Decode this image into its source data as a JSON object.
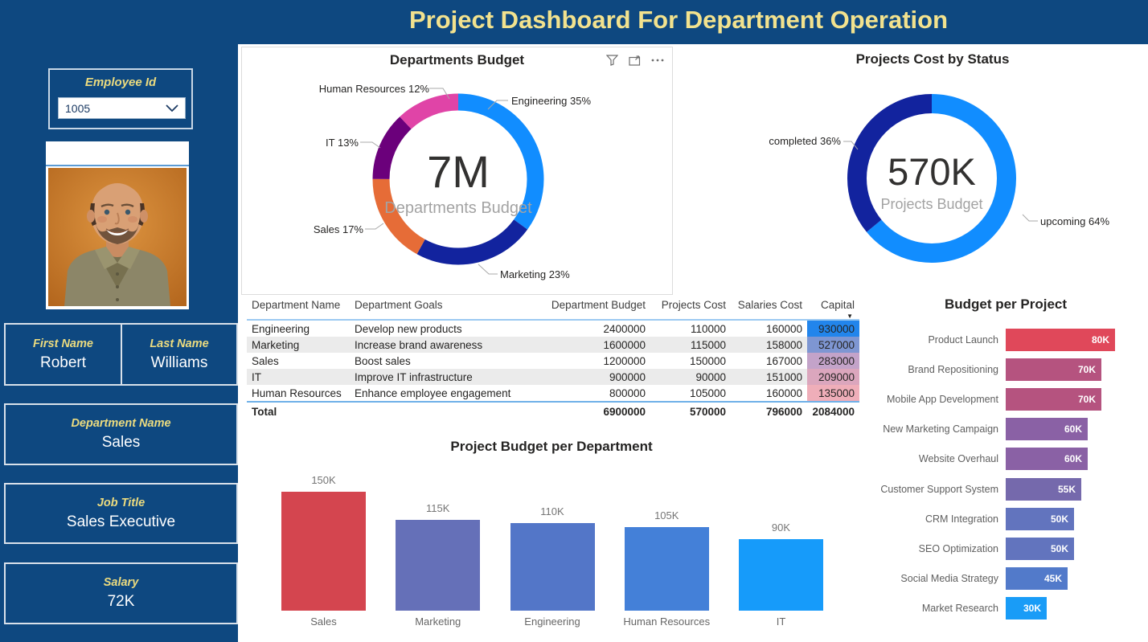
{
  "title": "Project Dashboard For Department Operation",
  "employee": {
    "id_label": "Employee Id",
    "id_value": "1005",
    "first_name_label": "First Name",
    "first_name": "Robert",
    "last_name_label": "Last Name",
    "last_name": "Williams",
    "department_label": "Department Name",
    "department": "Sales",
    "job_title_label": "Job Title",
    "job_title": "Sales Executive",
    "salary_label": "Salary",
    "salary": "72K"
  },
  "colors": {
    "background_navy": "#0E4880",
    "title_yellow": "#F2E28E",
    "label_yellow": "#EBDB7F",
    "powerbi_blue": "#118DFF",
    "powerbi_navy": "#12239E"
  },
  "table": {
    "columns": [
      "Department Name",
      "Department Goals",
      "Department Budget",
      "Projects Cost",
      "Salaries Cost",
      "Capital"
    ],
    "sorted_column": "Capital",
    "rows": [
      {
        "name": "Engineering",
        "goal": "Develop new products",
        "budget": "2400000",
        "projects_cost": "110000",
        "salaries_cost": "160000",
        "capital": "930000",
        "capital_color": "#2285EC"
      },
      {
        "name": "Marketing",
        "goal": "Increase brand awareness",
        "budget": "1600000",
        "projects_cost": "115000",
        "salaries_cost": "158000",
        "capital": "527000",
        "capital_color": "#7E96D2"
      },
      {
        "name": "Sales",
        "goal": "Boost sales",
        "budget": "1200000",
        "projects_cost": "150000",
        "salaries_cost": "167000",
        "capital": "283000",
        "capital_color": "#C3A3C9"
      },
      {
        "name": "IT",
        "goal": "Improve IT infrastructure",
        "budget": "900000",
        "projects_cost": "90000",
        "salaries_cost": "151000",
        "capital": "209000",
        "capital_color": "#DBA6BD"
      },
      {
        "name": "Human Resources",
        "goal": "Enhance employee engagement",
        "budget": "800000",
        "projects_cost": "105000",
        "salaries_cost": "160000",
        "capital": "135000",
        "capital_color": "#EFAEB9"
      }
    ],
    "total": {
      "label": "Total",
      "budget": "6900000",
      "projects_cost": "570000",
      "salaries_cost": "796000",
      "capital": "2084000"
    }
  },
  "chart_data": [
    {
      "type": "pie",
      "title": "Departments Budget",
      "categories": [
        "Engineering",
        "Marketing",
        "Sales",
        "IT",
        "Human Resources"
      ],
      "values_pct": [
        35,
        23,
        17,
        13,
        12
      ],
      "colors": [
        "#118DFF",
        "#12239E",
        "#E66C37",
        "#6B007B",
        "#E044A7"
      ],
      "center_value": "7M",
      "center_label": "Departments Budget",
      "callouts": [
        "Engineering 35%",
        "Marketing 23%",
        "Sales 17%",
        "IT 13%",
        "Human Resources 12%"
      ],
      "legend_position": "callout-labels"
    },
    {
      "type": "pie",
      "title": "Projects Cost by Status",
      "categories": [
        "upcoming",
        "completed"
      ],
      "values_pct": [
        64,
        36
      ],
      "colors": [
        "#118DFF",
        "#12239E"
      ],
      "center_value": "570K",
      "center_label": "Projects Budget",
      "callouts": [
        "completed 36%",
        "upcoming 64%"
      ],
      "legend_position": "callout-labels"
    },
    {
      "type": "bar",
      "orientation": "vertical",
      "title": "Project Budget per Department",
      "categories": [
        "Sales",
        "Marketing",
        "Engineering",
        "Human Resources",
        "IT"
      ],
      "values": [
        150000,
        115000,
        110000,
        105000,
        90000
      ],
      "value_labels": [
        "150K",
        "115K",
        "110K",
        "105K",
        "90K"
      ],
      "colors": [
        "#D4454F",
        "#6570B8",
        "#5376C8",
        "#4480D8",
        "#169BFA"
      ],
      "ylim": [
        0,
        150000
      ],
      "grid": false
    },
    {
      "type": "bar",
      "orientation": "horizontal",
      "title": "Budget per Project",
      "categories": [
        "Product Launch",
        "Brand Repositioning",
        "Mobile App Development",
        "New Marketing Campaign",
        "Website Overhaul",
        "Customer Support System",
        "CRM Integration",
        "SEO Optimization",
        "Social Media Strategy",
        "Market Research"
      ],
      "values": [
        80000,
        70000,
        70000,
        60000,
        60000,
        55000,
        50000,
        50000,
        45000,
        30000
      ],
      "value_labels": [
        "80K",
        "70K",
        "70K",
        "60K",
        "60K",
        "55K",
        "50K",
        "50K",
        "45K",
        "30K"
      ],
      "colors": [
        "#E0485A",
        "#B5537F",
        "#B5537F",
        "#8A61A5",
        "#8A61A5",
        "#7569AC",
        "#6274BE",
        "#6274BE",
        "#527ACA",
        "#199CF7"
      ],
      "xlim": [
        0,
        80000
      ],
      "grid": false
    }
  ]
}
